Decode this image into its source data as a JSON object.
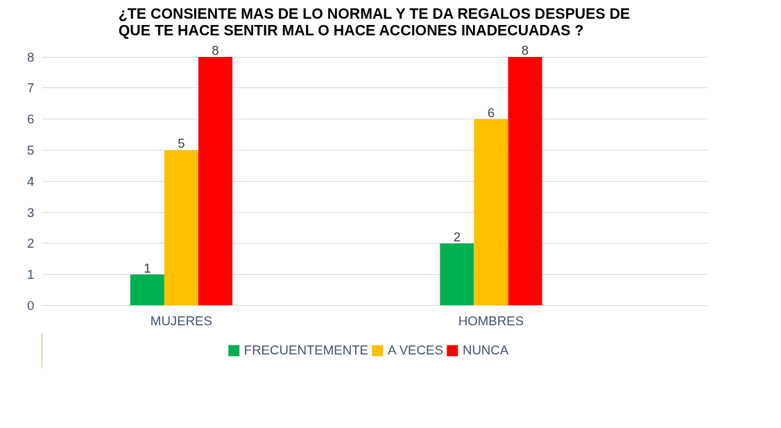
{
  "chart_data": {
    "type": "bar",
    "title": "¿TE CONSIENTE MAS DE LO NORMAL Y TE DA REGALOS DESPUES DE QUE TE HACE SENTIR MAL O HACE ACCIONES INADECUADAS ?",
    "categories": [
      "MUJERES",
      "HOMBRES"
    ],
    "series": [
      {
        "name": "FRECUENTEMENTE",
        "color": "#00b050",
        "values": [
          1,
          2
        ]
      },
      {
        "name": "A VECES",
        "color": "#ffc000",
        "values": [
          5,
          6
        ]
      },
      {
        "name": "NUNCA",
        "color": "#ff0000",
        "values": [
          8,
          8
        ]
      }
    ],
    "ylim": [
      0,
      8
    ],
    "yticks": [
      0,
      1,
      2,
      3,
      4,
      5,
      6,
      7,
      8
    ],
    "grid": "y",
    "legend": "bottom",
    "data_labels": true
  }
}
